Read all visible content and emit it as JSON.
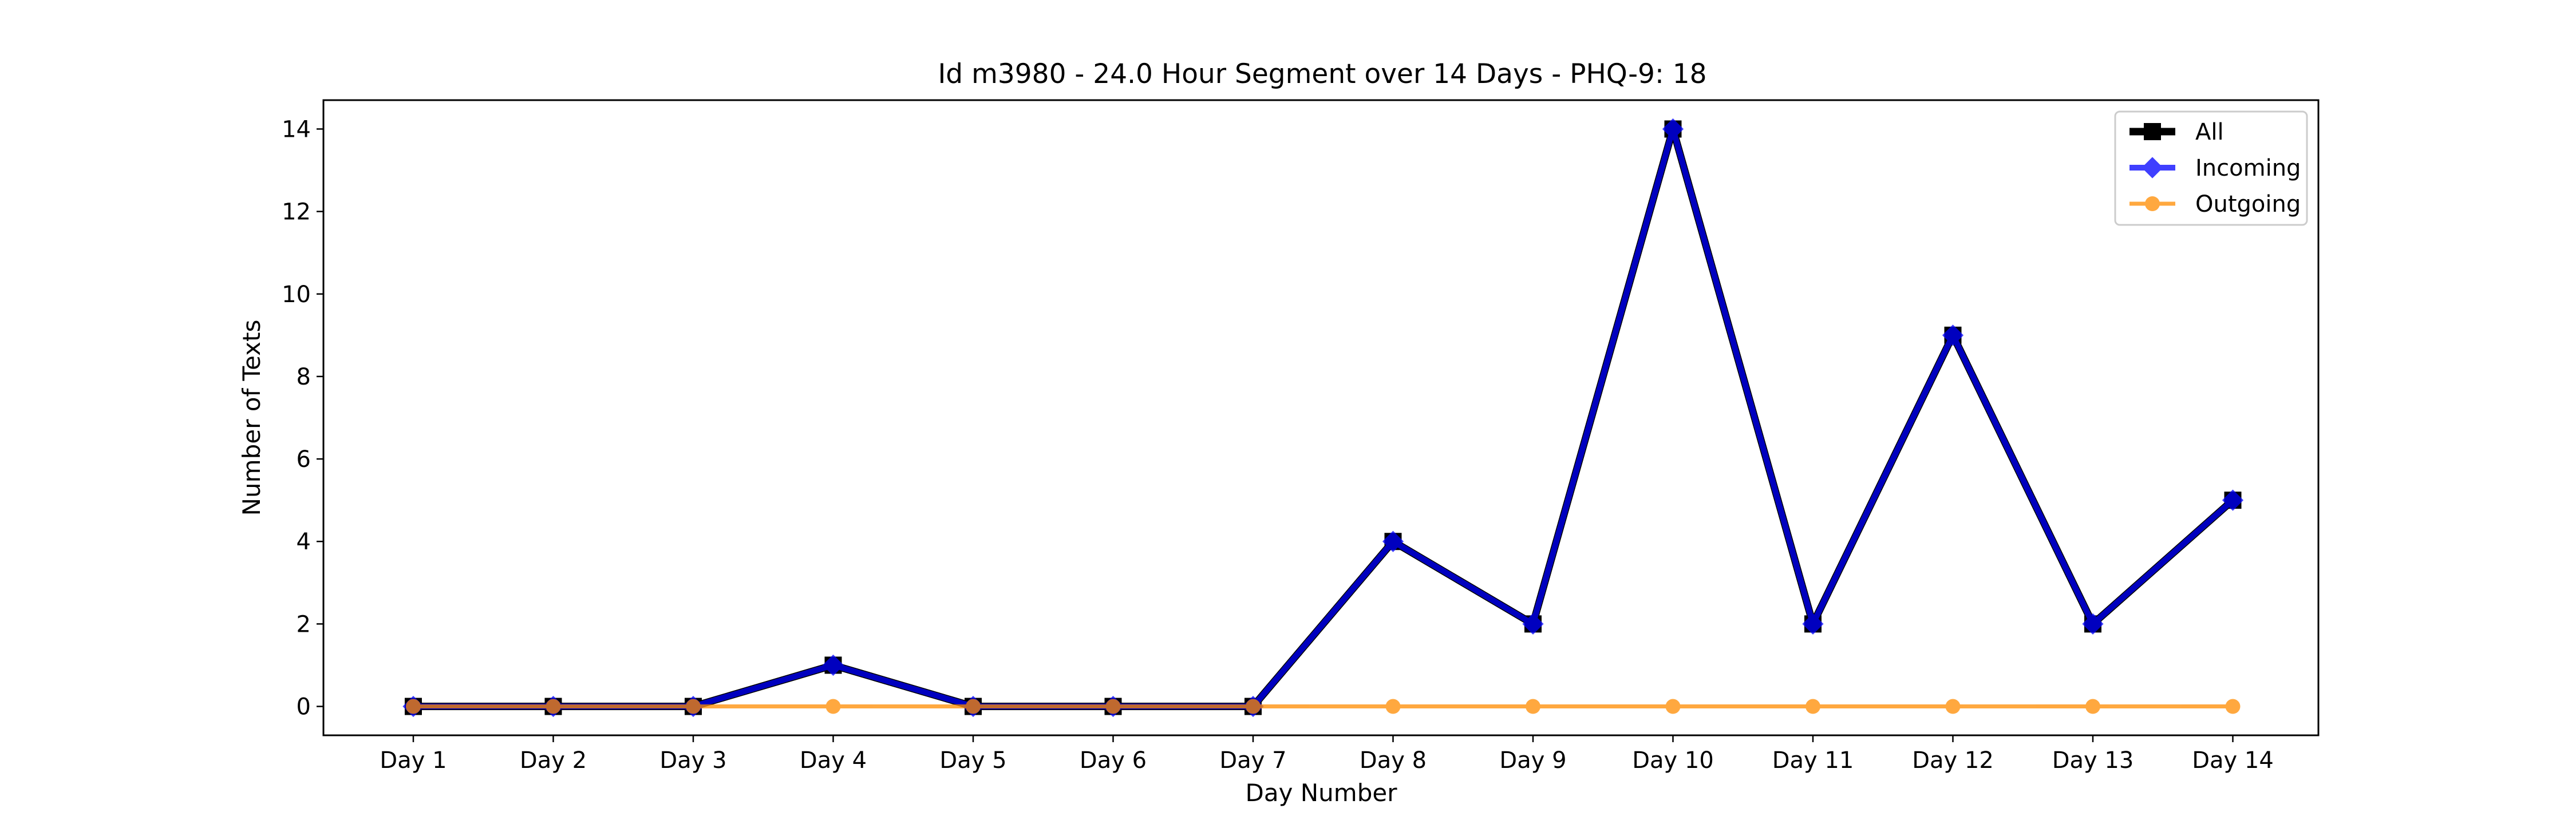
{
  "chart_data": {
    "type": "line",
    "title": "Id m3980 - 24.0 Hour Segment over 14 Days - PHQ-9: 18",
    "xlabel": "Day Number",
    "ylabel": "Number of Texts",
    "categories": [
      "Day 1",
      "Day 2",
      "Day 3",
      "Day 4",
      "Day 5",
      "Day 6",
      "Day 7",
      "Day 8",
      "Day 9",
      "Day 10",
      "Day 11",
      "Day 12",
      "Day 13",
      "Day 14"
    ],
    "ylim": [
      -0.7,
      14.7
    ],
    "yticks": [
      0,
      2,
      4,
      6,
      8,
      10,
      12,
      14
    ],
    "grid": false,
    "legend_position": "top-right",
    "series": [
      {
        "name": "All",
        "color": "#000000",
        "marker": "square",
        "values": [
          0,
          0,
          0,
          1,
          0,
          0,
          0,
          4,
          2,
          14,
          2,
          9,
          2,
          5
        ]
      },
      {
        "name": "Incoming",
        "color": "#0000ff",
        "marker": "diamond",
        "values": [
          0,
          0,
          0,
          1,
          0,
          0,
          0,
          4,
          2,
          14,
          2,
          9,
          2,
          5
        ]
      },
      {
        "name": "Outgoing",
        "color": "#ff8c00",
        "marker": "circle",
        "values": [
          0,
          0,
          0,
          0,
          0,
          0,
          0,
          0,
          0,
          0,
          0,
          0,
          0,
          0
        ]
      }
    ]
  }
}
